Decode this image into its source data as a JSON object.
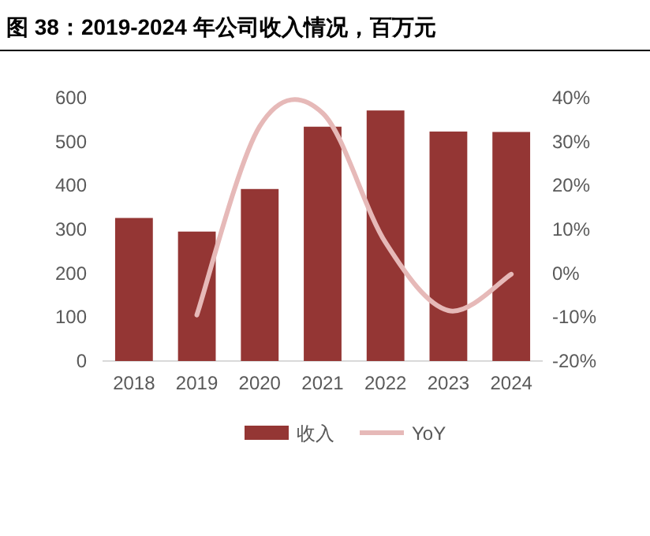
{
  "chart_data": {
    "type": "bar",
    "title": "图 38：2019-2024 年公司收入情况，百万元",
    "categories": [
      "2018",
      "2019",
      "2020",
      "2021",
      "2022",
      "2023",
      "2024"
    ],
    "series": [
      {
        "name": "收入",
        "color": "#943634",
        "values": [
          326,
          295,
          392,
          534,
          571,
          523,
          522
        ]
      },
      {
        "name": "YoY",
        "type": "line",
        "axis": "y2",
        "color": "#e6b9b8",
        "values": [
          null,
          -9.5,
          33.5,
          36.5,
          7,
          -8.5,
          -0.2
        ]
      }
    ],
    "ylim": [
      0,
      600
    ],
    "yticks": [
      0,
      100,
      200,
      300,
      400,
      500,
      600
    ],
    "y2lim": [
      -20,
      40
    ],
    "y2ticks": [
      {
        "value": -20,
        "label": "-20%"
      },
      {
        "value": -10,
        "label": "-10%"
      },
      {
        "value": 0,
        "label": "0%"
      },
      {
        "value": 10,
        "label": "10%"
      },
      {
        "value": 20,
        "label": "20%"
      },
      {
        "value": 30,
        "label": "30%"
      },
      {
        "value": 40,
        "label": "40%"
      }
    ],
    "grid": false,
    "legend": "bottom"
  }
}
